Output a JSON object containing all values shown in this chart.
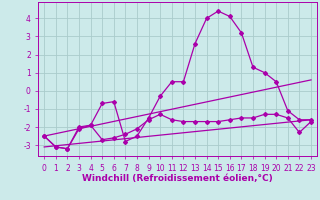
{
  "background_color": "#cceaea",
  "grid_color": "#aacccc",
  "line_color": "#aa00aa",
  "xlim": [
    -0.5,
    23.5
  ],
  "ylim": [
    -3.6,
    4.9
  ],
  "yticks": [
    -3,
    -2,
    -1,
    0,
    1,
    2,
    3,
    4
  ],
  "xtick_labels": [
    "0",
    "1",
    "2",
    "3",
    "4",
    "5",
    "6",
    "7",
    "8",
    "9",
    "10",
    "11",
    "12",
    "13",
    "14",
    "15",
    "16",
    "17",
    "18",
    "19",
    "20",
    "21",
    "22",
    "23"
  ],
  "xtick_pos": [
    0,
    1,
    2,
    3,
    4,
    5,
    6,
    7,
    8,
    9,
    10,
    11,
    12,
    13,
    14,
    15,
    16,
    17,
    18,
    19,
    20,
    21,
    22,
    23
  ],
  "xlabel": "Windchill (Refroidissement éolien,°C)",
  "line1_x": [
    0,
    1,
    2,
    3,
    4,
    5,
    6,
    7,
    8,
    9,
    10,
    11,
    12,
    13,
    14,
    15,
    16,
    17,
    18,
    19,
    20,
    21,
    22,
    23
  ],
  "line1_y": [
    -2.5,
    -3.1,
    -3.2,
    -2.0,
    -1.9,
    -0.7,
    -0.6,
    -2.8,
    -2.5,
    -1.5,
    -0.3,
    0.5,
    0.5,
    2.6,
    4.0,
    4.4,
    4.1,
    3.2,
    1.3,
    1.0,
    0.5,
    -1.1,
    -1.6,
    -1.6
  ],
  "line2_x": [
    0,
    1,
    2,
    3,
    4,
    5,
    6,
    7,
    8,
    9,
    10,
    11,
    12,
    13,
    14,
    15,
    16,
    17,
    18,
    19,
    20,
    21,
    22,
    23
  ],
  "line2_y": [
    -2.5,
    -3.1,
    -3.2,
    -2.1,
    -1.9,
    -2.7,
    -2.6,
    -2.4,
    -2.1,
    -1.6,
    -1.3,
    -1.6,
    -1.7,
    -1.7,
    -1.7,
    -1.7,
    -1.6,
    -1.5,
    -1.5,
    -1.3,
    -1.3,
    -1.5,
    -2.3,
    -1.7
  ],
  "line3_x": [
    0,
    23
  ],
  "line3_y": [
    -2.5,
    0.6
  ],
  "line4_x": [
    0,
    23
  ],
  "line4_y": [
    -3.1,
    -1.6
  ],
  "tick_fontsize": 5.5,
  "axis_fontsize": 6.5
}
